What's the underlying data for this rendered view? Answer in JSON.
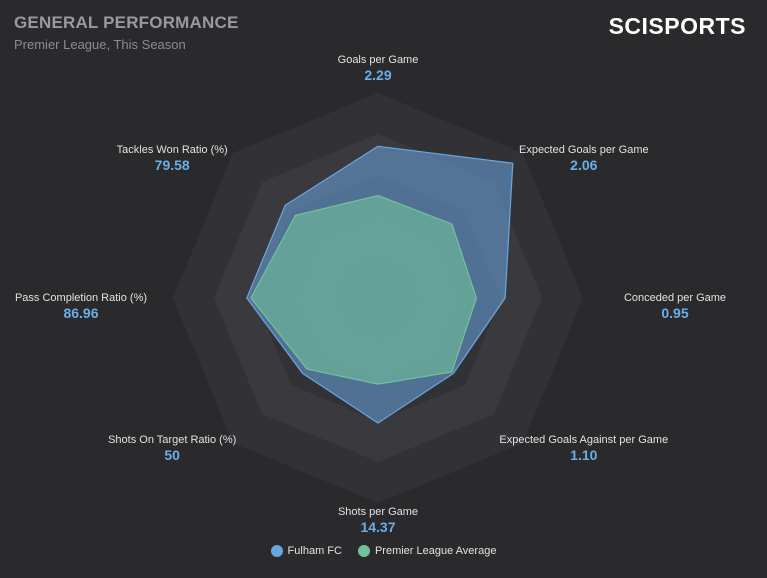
{
  "header": {
    "title": "GENERAL PERFORMANCE",
    "subtitle": "Premier League, This Season",
    "brand": "SCISPORTS"
  },
  "colors": {
    "background": "#2a2a2c",
    "ring_dark": "#323135",
    "ring_light": "#3a393e",
    "team": "#6aa6e0",
    "average": "#72c19c",
    "value_text": "#6aaee8"
  },
  "chart_data": {
    "type": "radar",
    "title": "GENERAL PERFORMANCE",
    "subtitle": "Premier League, This Season",
    "grid": true,
    "legend_position": "bottom",
    "axes": [
      {
        "label": "Goals per Game",
        "value": "2.29"
      },
      {
        "label": "Expected Goals per Game",
        "value": "2.06"
      },
      {
        "label": "Conceded per Game",
        "value": "0.95"
      },
      {
        "label": "Expected Goals Against per Game",
        "value": "1.10"
      },
      {
        "label": "Shots per Game",
        "value": "14.37"
      },
      {
        "label": "Shots On Target Ratio (%)",
        "value": "50"
      },
      {
        "label": "Pass Completion Ratio (%)",
        "value": "86.96"
      },
      {
        "label": "Tackles Won Ratio (%)",
        "value": "79.58"
      }
    ],
    "scale": [
      0,
      1
    ],
    "series": [
      {
        "name": "Fulham FC",
        "color": "#6aa6e0",
        "values": [
          0.74,
          0.93,
          0.62,
          0.52,
          0.61,
          0.52,
          0.64,
          0.64
        ]
      },
      {
        "name": "Premier League Average",
        "color": "#72c19c",
        "values": [
          0.5,
          0.51,
          0.48,
          0.51,
          0.42,
          0.49,
          0.62,
          0.57
        ]
      }
    ]
  }
}
